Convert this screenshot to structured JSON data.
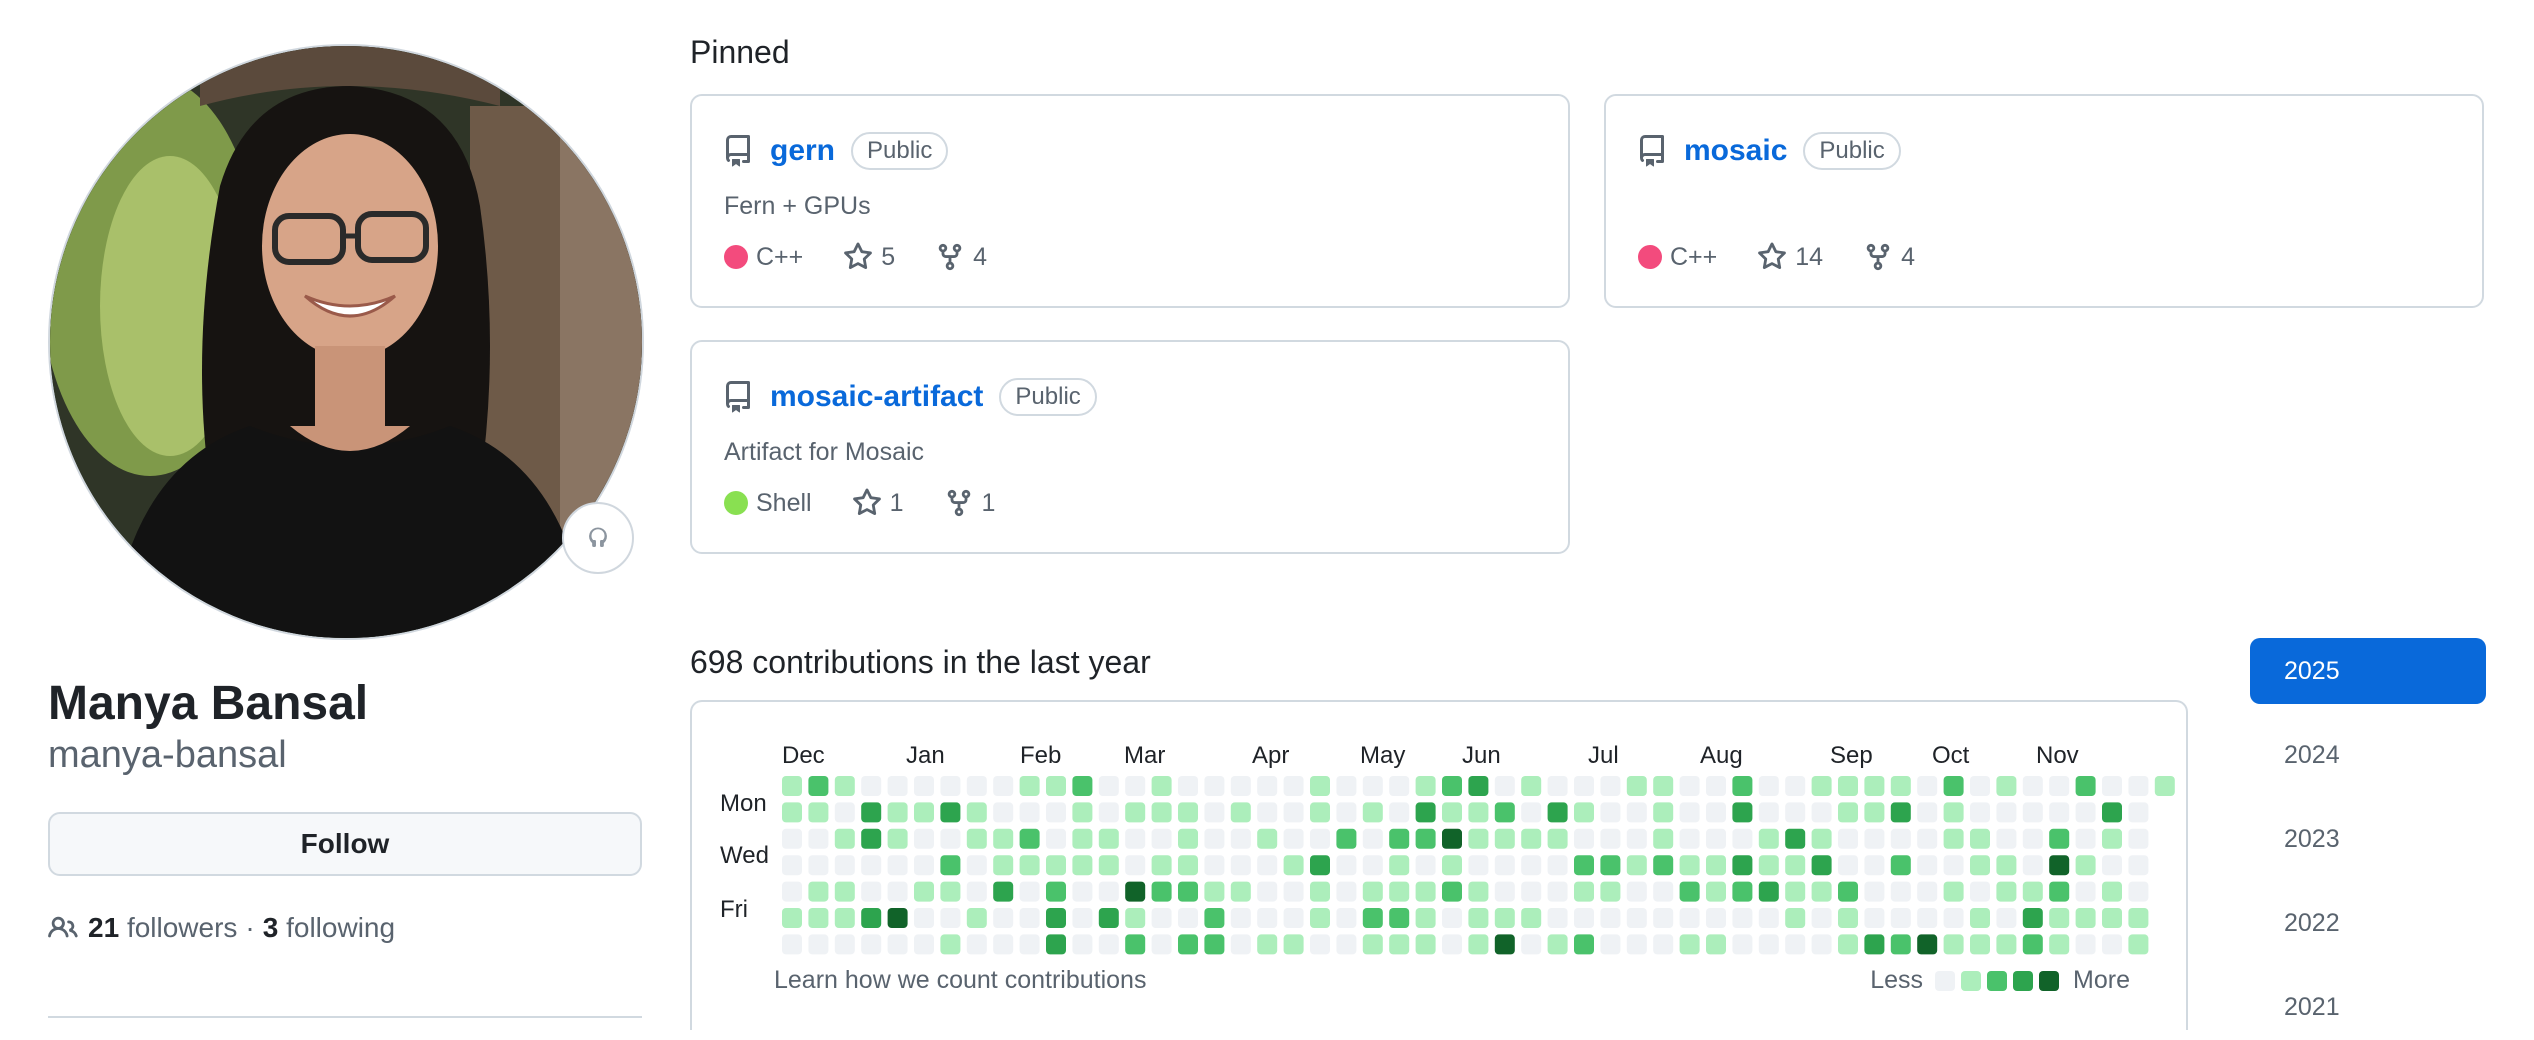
{
  "profile": {
    "name": "Manya Bansal",
    "login": "manya-bansal",
    "follow_label": "Follow",
    "followers_count": "21",
    "followers_label": "followers",
    "separator": "·",
    "following_count": "3",
    "following_label": "following"
  },
  "pinned": {
    "title": "Pinned",
    "repos": [
      {
        "name": "gern",
        "visibility": "Public",
        "description": "Fern + GPUs",
        "language": "C++",
        "language_color": "#f34b7d",
        "stars": "5",
        "forks": "4"
      },
      {
        "name": "mosaic",
        "visibility": "Public",
        "description": "",
        "language": "C++",
        "language_color": "#f34b7d",
        "stars": "14",
        "forks": "4"
      },
      {
        "name": "mosaic-artifact",
        "visibility": "Public",
        "description": "Artifact for Mosaic",
        "language": "Shell",
        "language_color": "#89e051",
        "stars": "1",
        "forks": "1"
      }
    ]
  },
  "contributions": {
    "title": "698 contributions in the last year",
    "months": [
      "Dec",
      "Jan",
      "Feb",
      "Mar",
      "Apr",
      "May",
      "Jun",
      "Jul",
      "Aug",
      "Sep",
      "Oct",
      "Nov"
    ],
    "days": [
      "Mon",
      "Wed",
      "Fri"
    ],
    "learn_label": "Learn how we count contributions",
    "legend_less": "Less",
    "legend_more": "More",
    "level_colors": [
      "#eff2f5",
      "#aceebb",
      "#4ac26b",
      "#2da44e",
      "#116329"
    ]
  },
  "years": [
    "2025",
    "2024",
    "2023",
    "2022",
    "2021"
  ],
  "icons": {
    "repo": "repo-icon",
    "star": "star-icon",
    "fork": "fork-icon",
    "people": "people-icon",
    "status": "smiley-icon"
  }
}
